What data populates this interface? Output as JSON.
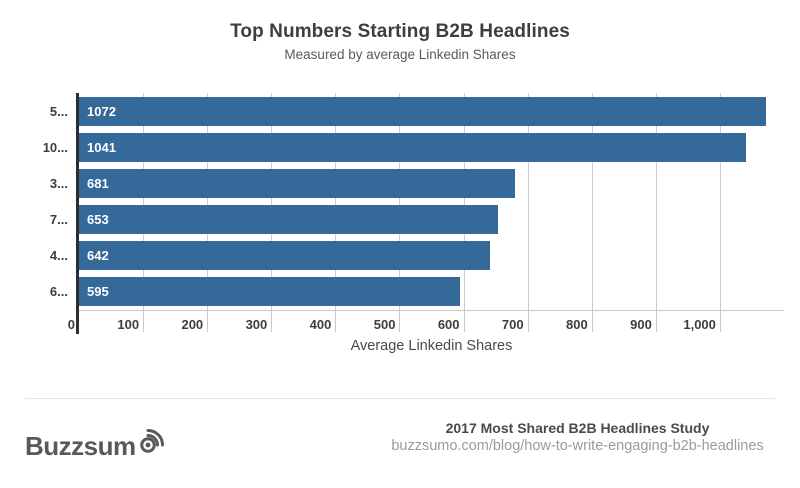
{
  "chart_data": {
    "type": "bar",
    "orientation": "horizontal",
    "title": "Top Numbers Starting B2B Headlines",
    "subtitle": "Measured by average Linkedin Shares",
    "categories": [
      "5...",
      "10...",
      "3...",
      "7...",
      "4...",
      "6..."
    ],
    "values": [
      1072,
      1041,
      681,
      653,
      642,
      595
    ],
    "xlabel": "Average Linkedin Shares",
    "xlim": [
      0,
      1100
    ],
    "x_ticks": [
      {
        "value": 0,
        "label": "0"
      },
      {
        "value": 100,
        "label": "100"
      },
      {
        "value": 200,
        "label": "200"
      },
      {
        "value": 300,
        "label": "300"
      },
      {
        "value": 400,
        "label": "400"
      },
      {
        "value": 500,
        "label": "500"
      },
      {
        "value": 600,
        "label": "600"
      },
      {
        "value": 700,
        "label": "700"
      },
      {
        "value": 800,
        "label": "800"
      },
      {
        "value": 900,
        "label": "900"
      },
      {
        "value": 1000,
        "label": "1,000"
      }
    ],
    "grid": true,
    "legend": "none",
    "bar_color": "#34699a",
    "value_label_color": "#ffffff",
    "gridline_color": "#cccccc",
    "axis_line_color": "#2e2e2e"
  },
  "footer": {
    "logo_text": "Buzzsum",
    "logo_icon": "broadcast-o-icon",
    "logo_color": "#58595b",
    "study_title": "2017 Most Shared B2B Headlines Study",
    "study_url": "buzzsumo.com/blog/how-to-write-engaging-b2b-headlines"
  }
}
